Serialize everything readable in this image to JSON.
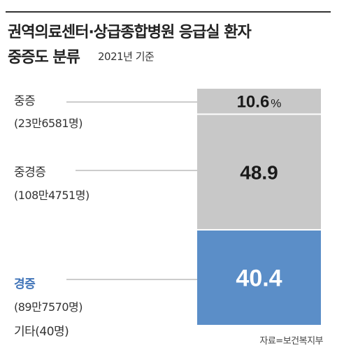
{
  "header": {
    "title_line1": "권역의료센터·상급종합병원 응급실 환자",
    "title_line2": "중증도 분류",
    "subtitle": "2021년 기준"
  },
  "chart_data": {
    "type": "bar",
    "stacked": true,
    "unit": "%",
    "segments": [
      {
        "name": "중증",
        "count_label": "(23만6581명)",
        "value": 10.6,
        "value_label": "10.6",
        "unit_label": "%",
        "color": "#c8c8c8"
      },
      {
        "name": "중경증",
        "count_label": "(108만4751명)",
        "value": 48.9,
        "value_label": "48.9",
        "color": "#c8c8c8"
      },
      {
        "name": "경증",
        "count_label": "(89만7570명)",
        "value": 40.4,
        "value_label": "40.4",
        "color": "#5b8ec8",
        "highlight": true
      }
    ],
    "other_note": "기타(40명)",
    "value_label_colors": {
      "default": "#1a1a1a",
      "highlight": "#ffffff"
    },
    "leader_line_color": "#9a9a9a"
  },
  "footer": {
    "source": "자료=보건복지부"
  }
}
